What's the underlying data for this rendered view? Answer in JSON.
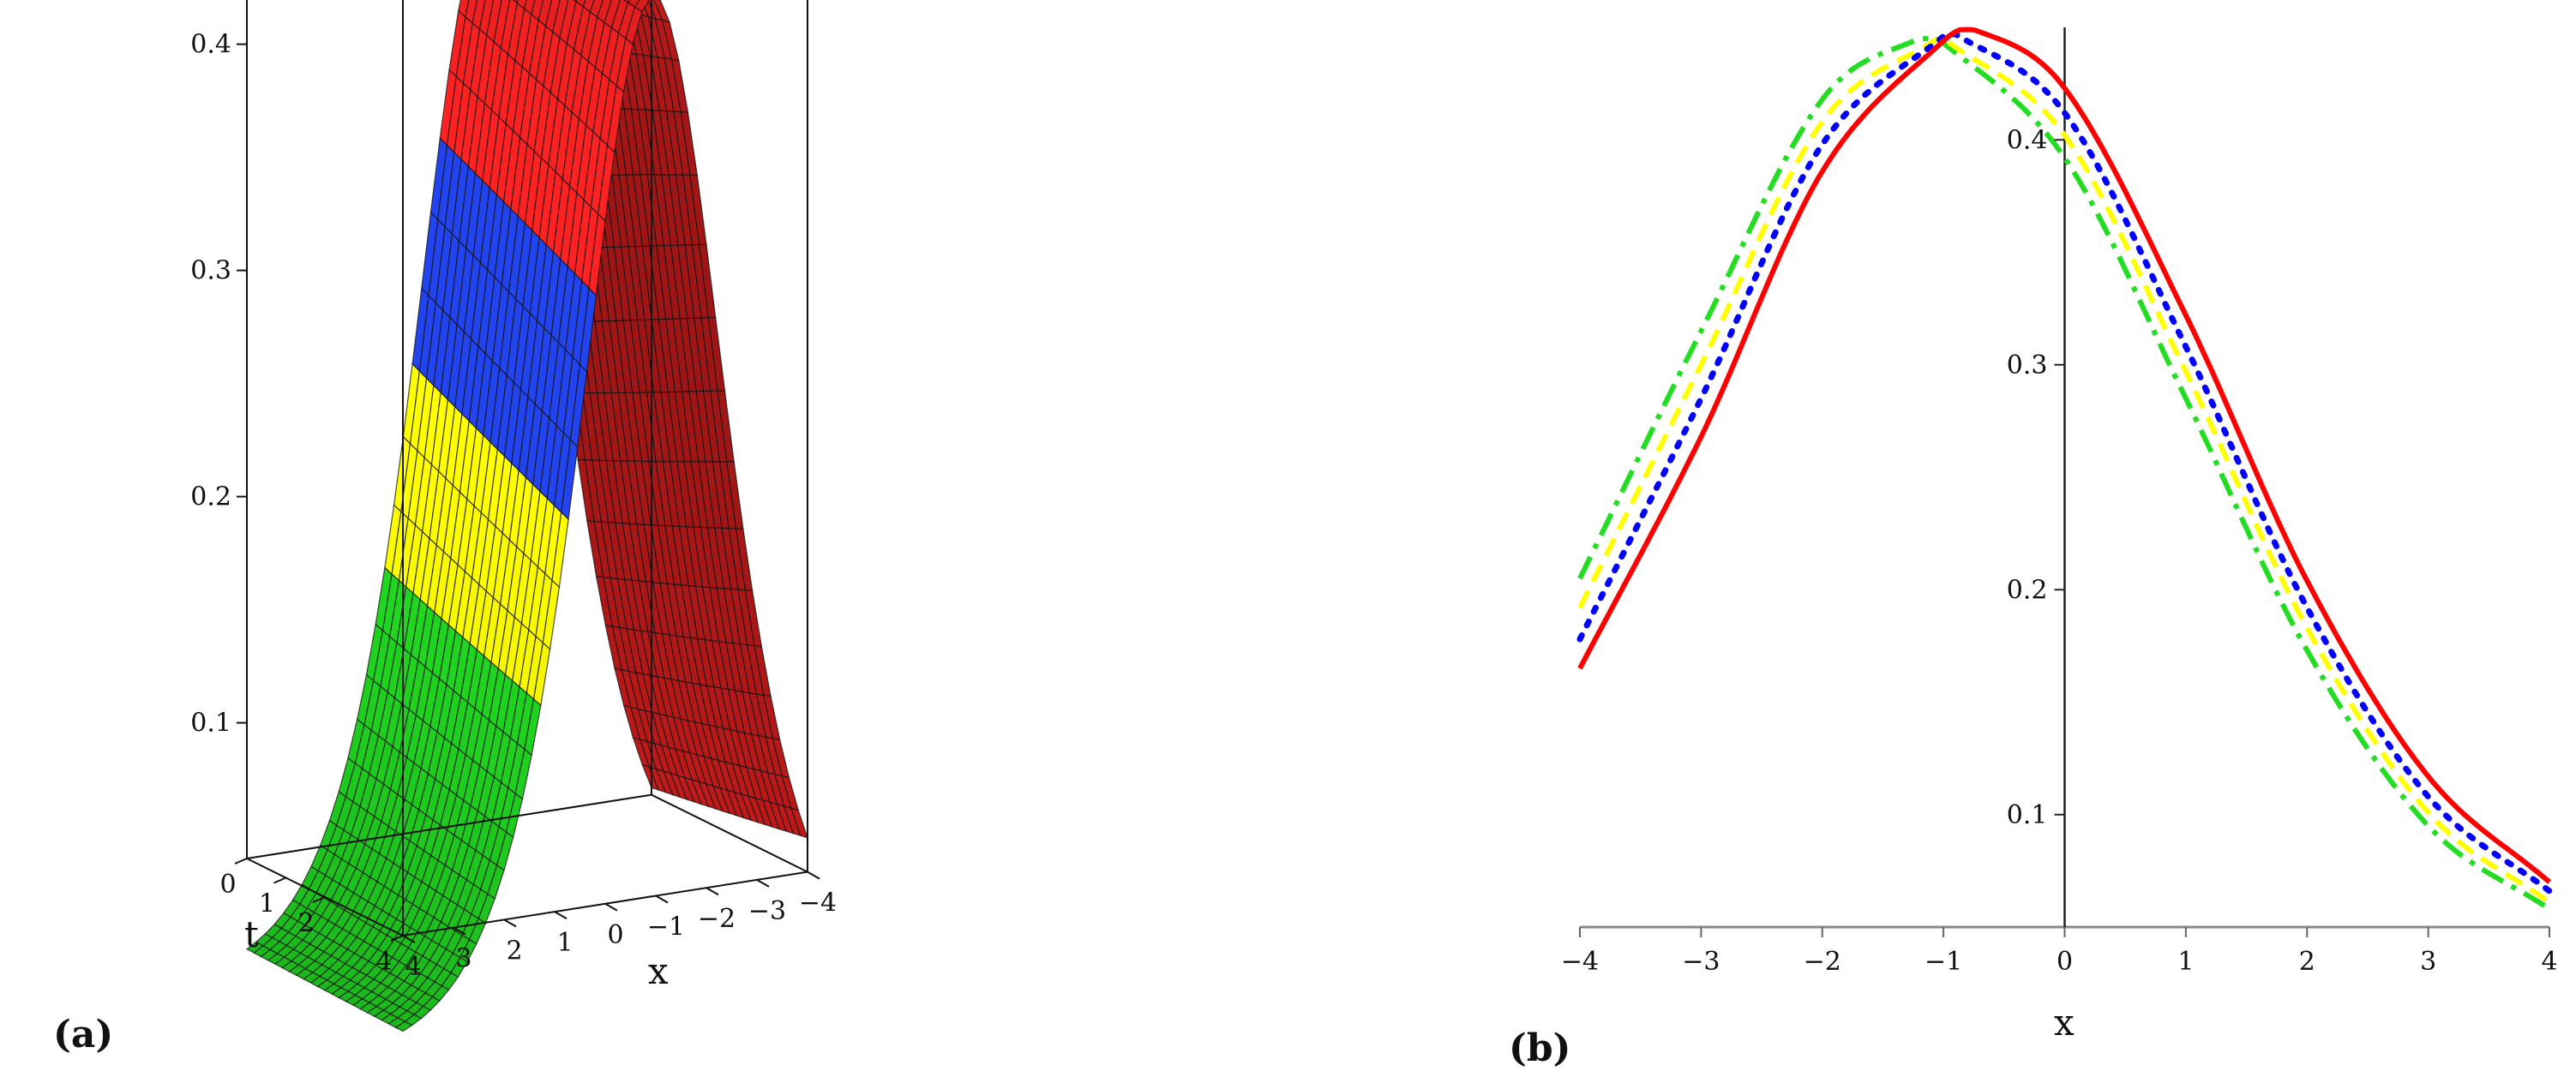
{
  "panel_labels": {
    "a": "(a)",
    "b": "(b)"
  },
  "chart_data": [
    {
      "panel": "(a)",
      "type": "surface3d",
      "xlabel": "x",
      "tlabel": "t",
      "x_ticks": [
        "4",
        "3",
        "2",
        "1",
        "0",
        "−1",
        "−2",
        "−3",
        "−4"
      ],
      "t_ticks": [
        "0",
        "1",
        "2",
        "4"
      ],
      "z_ticks": [
        "0.1",
        "0.2",
        "0.3",
        "0.4"
      ],
      "xlim": [
        -4,
        4
      ],
      "tlim": [
        0,
        4
      ],
      "zlim": [
        0.04,
        0.46
      ],
      "surface_colors": [
        "#22dd22",
        "#ffff00",
        "#2244ee",
        "#ff2222"
      ],
      "peak_value": 0.45
    },
    {
      "panel": "(b)",
      "type": "line",
      "xlabel": "x",
      "xlim": [
        -4,
        4
      ],
      "ylim": [
        0.05,
        0.45
      ],
      "x_ticks": [
        "−4",
        "−3",
        "−2",
        "−1",
        "0",
        "1",
        "2",
        "3",
        "4"
      ],
      "y_ticks": [
        "0.1",
        "0.2",
        "0.3",
        "0.4"
      ],
      "x_tick_values": [
        -4,
        -3,
        -2,
        -1,
        0,
        1,
        2,
        3,
        4
      ],
      "y_tick_values": [
        0.1,
        0.2,
        0.3,
        0.4
      ],
      "series": [
        {
          "color": "#ff0000",
          "dash": "solid",
          "peak_x": -0.75,
          "peak_y": 0.449,
          "scale": 1.9,
          "offset": -0.012,
          "x": [
            -4,
            -3,
            -2,
            -1,
            0,
            1,
            2,
            3,
            4
          ],
          "y": [
            0.165,
            0.268,
            0.386,
            0.444,
            0.423,
            0.322,
            0.204,
            0.117,
            0.07
          ]
        },
        {
          "color": "#0000ff",
          "dash": "dotted",
          "peak_x": -0.9,
          "peak_y": 0.447,
          "scale": 1.9,
          "offset": -0.012,
          "x": [
            -4,
            -3,
            -2,
            -1,
            0,
            1,
            2,
            3,
            4
          ],
          "y": [
            0.178,
            0.285,
            0.398,
            0.446,
            0.412,
            0.308,
            0.192,
            0.108,
            0.066
          ]
        },
        {
          "color": "#ffff00",
          "dash": "dashed",
          "peak_x": -1.05,
          "peak_y": 0.445,
          "scale": 1.9,
          "offset": -0.012,
          "x": [
            -4,
            -3,
            -2,
            -1,
            0,
            1,
            2,
            3,
            4
          ],
          "y": [
            0.192,
            0.3,
            0.408,
            0.445,
            0.402,
            0.297,
            0.183,
            0.101,
            0.061
          ]
        },
        {
          "color": "#22dd22",
          "dash": "dashdot",
          "peak_x": -1.2,
          "peak_y": 0.445,
          "scale": 1.9,
          "offset": -0.012,
          "x": [
            -4,
            -3,
            -2,
            -1,
            0,
            1,
            2,
            3,
            4
          ],
          "y": [
            0.205,
            0.315,
            0.418,
            0.443,
            0.392,
            0.285,
            0.173,
            0.095,
            0.058
          ]
        }
      ]
    }
  ]
}
